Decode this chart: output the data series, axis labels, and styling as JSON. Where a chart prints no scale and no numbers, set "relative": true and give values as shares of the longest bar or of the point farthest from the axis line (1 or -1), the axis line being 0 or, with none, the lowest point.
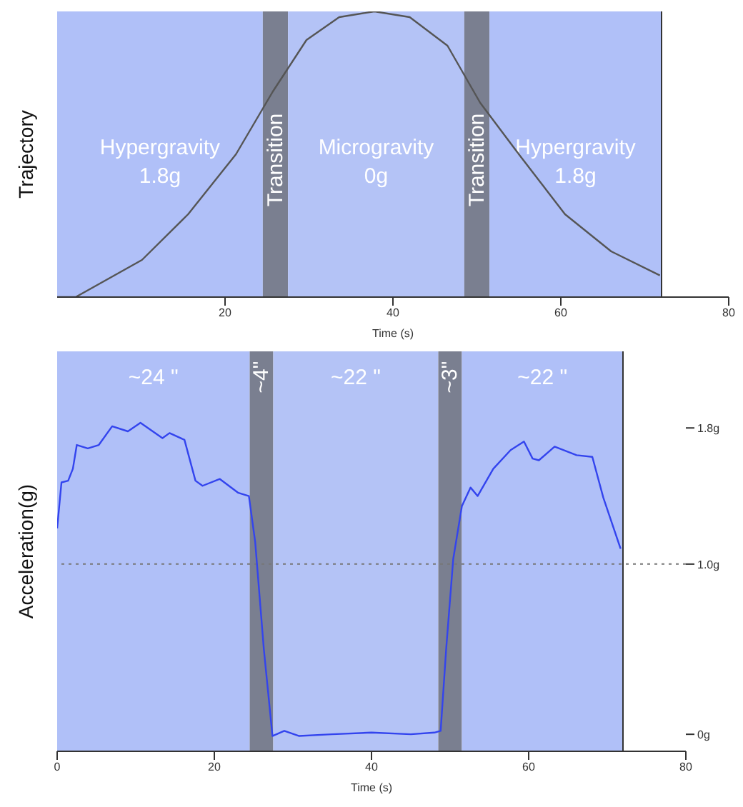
{
  "chart_data": [
    {
      "type": "line",
      "relative": true,
      "ylabel": "Trajectory",
      "xlabel": "Time (s)",
      "xlim": [
        0,
        80
      ],
      "xticks": [
        20,
        40,
        60,
        80
      ],
      "grid": false,
      "legend": false,
      "marker": "none",
      "line_style": "solid",
      "series": [
        {
          "color": "#555555",
          "x": [
            0,
            2.2,
            10.1,
            15.6,
            21.3,
            25.7,
            29.7,
            33.6,
            37.8,
            42,
            46.5,
            50.4,
            55,
            60.5,
            66,
            71.8
          ],
          "values": [
            0,
            0,
            0.13,
            0.29,
            0.5,
            0.72,
            0.9,
            0.98,
            1,
            0.98,
            0.88,
            0.68,
            0.5,
            0.29,
            0.16,
            0.076
          ]
        }
      ],
      "ref_lines": [
        {
          "axis": "x",
          "value": 72,
          "color": "#333333"
        }
      ],
      "bands": [
        {
          "axis": "x",
          "from": 0,
          "to": 24.5,
          "label": "Hypergravity\n1.8g",
          "color": "#b0c0f8"
        },
        {
          "axis": "x",
          "from": 24.5,
          "to": 27.5,
          "label": "Transition",
          "color": "#7a7f90"
        },
        {
          "axis": "x",
          "from": 27.5,
          "to": 48.5,
          "label": "Microgravity\n0g",
          "color": "#b4c3f6"
        },
        {
          "axis": "x",
          "from": 48.5,
          "to": 51.5,
          "label": "Transition",
          "color": "#7a7f90"
        },
        {
          "axis": "x",
          "from": 51.5,
          "to": 72,
          "label": "Hypergravity\n1.8g",
          "color": "#b0c0f8"
        }
      ]
    },
    {
      "type": "line",
      "ylabel": "Acceleration(g)",
      "xlabel": "Time (s)",
      "xlim": [
        0,
        80
      ],
      "xticks": [
        0,
        20,
        40,
        60,
        80
      ],
      "ylim": [
        -0.1,
        2.25
      ],
      "yticks": [
        {
          "value": 0,
          "label": "0g"
        },
        {
          "value": 1,
          "label": "1.0g"
        },
        {
          "value": 1.8,
          "label": "1.8g"
        }
      ],
      "grid": false,
      "legend": false,
      "marker": "none",
      "line_style": "solid",
      "series": [
        {
          "color": "#3344ee",
          "x": [
            0,
            0.55,
            1.4,
            2,
            2.5,
            3.9,
            5.3,
            7,
            9,
            10.6,
            13.4,
            14.3,
            16.2,
            17.6,
            18.5,
            20.7,
            23,
            24.4,
            25.2,
            26.3,
            27.4,
            28.9,
            30.8,
            35,
            40,
            45,
            48,
            48.8,
            49.5,
            50.4,
            51.5,
            52.6,
            53.5,
            55.5,
            57.7,
            59.4,
            60.5,
            61.3,
            63.3,
            66.1,
            68.1,
            69.5,
            71.7
          ],
          "values": [
            1.21,
            1.48,
            1.49,
            1.56,
            1.7,
            1.68,
            1.7,
            1.81,
            1.78,
            1.83,
            1.74,
            1.77,
            1.73,
            1.49,
            1.46,
            1.5,
            1.42,
            1.4,
            1.13,
            0.5,
            -0.01,
            0.02,
            -0.01,
            0,
            0.01,
            0,
            0.01,
            0.02,
            0.5,
            1.03,
            1.34,
            1.45,
            1.4,
            1.56,
            1.67,
            1.72,
            1.62,
            1.61,
            1.69,
            1.64,
            1.63,
            1.39,
            1.09
          ]
        }
      ],
      "ref_lines": [
        {
          "axis": "y",
          "value": 1,
          "color": "#777777",
          "line_style": "dotted"
        },
        {
          "axis": "x",
          "value": 72,
          "color": "#333333"
        }
      ],
      "bands": [
        {
          "axis": "x",
          "from": 0,
          "to": 24.5,
          "label": "~24 \"",
          "color": "#b0c0f8"
        },
        {
          "axis": "x",
          "from": 24.5,
          "to": 27.5,
          "label": "~4\"",
          "color": "#7a7f90"
        },
        {
          "axis": "x",
          "from": 27.5,
          "to": 48.5,
          "label": "~22 \"",
          "color": "#b4c3f6"
        },
        {
          "axis": "x",
          "from": 48.5,
          "to": 51.5,
          "label": "~3\"",
          "color": "#7a7f90"
        },
        {
          "axis": "x",
          "from": 51.5,
          "to": 72,
          "label": "~22 \"",
          "color": "#b0c0f8"
        }
      ]
    }
  ]
}
